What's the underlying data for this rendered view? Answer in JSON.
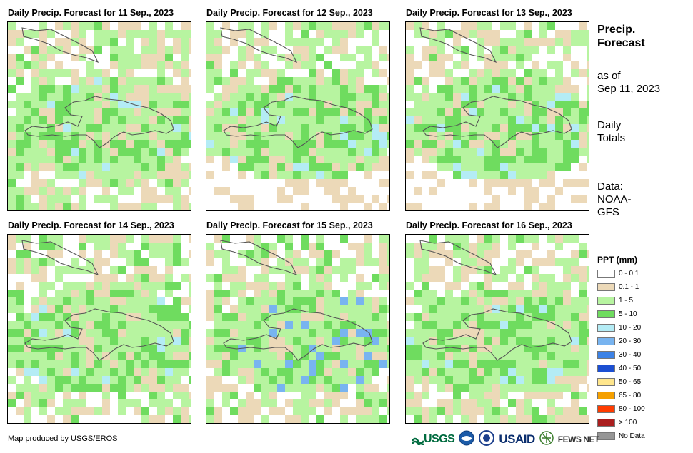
{
  "panels": [
    {
      "title": "Daily Precip. Forecast for 11 Sep., 2023",
      "seed": 11
    },
    {
      "title": "Daily Precip. Forecast for 12 Sep., 2023",
      "seed": 12
    },
    {
      "title": "Daily Precip. Forecast for 13 Sep., 2023",
      "seed": 13
    },
    {
      "title": "Daily Precip. Forecast for 14 Sep., 2023",
      "seed": 14
    },
    {
      "title": "Daily Precip. Forecast for 15 Sep., 2023",
      "seed": 15
    },
    {
      "title": "Daily Precip. Forecast for 16 Sep., 2023",
      "seed": 16
    }
  ],
  "side": {
    "title_line1": "Precip.",
    "title_line2": "Forecast",
    "asof_line1": "as of",
    "asof_line2": "Sep 11, 2023",
    "totals_line1": "Daily",
    "totals_line2": "Totals",
    "data_line1": "Data:",
    "data_line2": "NOAA-",
    "data_line3": "GFS"
  },
  "legend": {
    "title": "PPT (mm)",
    "items": [
      {
        "label": "0 - 0.1",
        "color": "#ffffff"
      },
      {
        "label": "0.1 - 1",
        "color": "#ecd9b8"
      },
      {
        "label": "1 - 5",
        "color": "#b7f4a0"
      },
      {
        "label": "5 - 10",
        "color": "#6fdc5f"
      },
      {
        "label": "10 - 20",
        "color": "#b4ecf5"
      },
      {
        "label": "20 - 30",
        "color": "#78b4f0"
      },
      {
        "label": "30 - 40",
        "color": "#3c82e6"
      },
      {
        "label": "40 - 50",
        "color": "#1c4fd2"
      },
      {
        "label": "50 - 65",
        "color": "#ffe68c"
      },
      {
        "label": "65 - 80",
        "color": "#f5a000"
      },
      {
        "label": "80 - 100",
        "color": "#ff3c00"
      },
      {
        "label": "> 100",
        "color": "#aa1e1e"
      },
      {
        "label": "No Data",
        "color": "#969696"
      }
    ]
  },
  "credit": "Map produced by USGS/EROS",
  "logos": {
    "usgs": "USGS",
    "usaid": "USAID",
    "fews": "FEWS NET",
    "usgs_icon": "usgs-logo",
    "noaa_icon": "noaa-logo",
    "dhs_icon": "seal-logo",
    "fews_icon": "fews-logo"
  }
}
